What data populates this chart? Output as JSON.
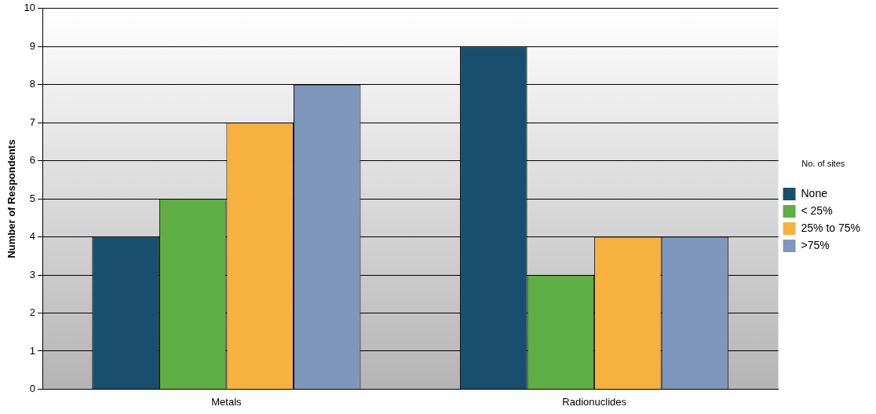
{
  "chart_data": {
    "type": "bar",
    "ylabel": "Number of Respondents",
    "legend_title": "No. of sites",
    "categories": [
      "Metals",
      "Radionuclides"
    ],
    "series": [
      {
        "name": "None",
        "color": "#1a4e6e",
        "values": [
          4,
          9
        ]
      },
      {
        "name": "< 25%",
        "color": "#5fae44",
        "values": [
          5,
          3
        ]
      },
      {
        "name": "25% to 75%",
        "color": "#f7b13f",
        "values": [
          7,
          4
        ]
      },
      {
        "name": ">75%",
        "color": "#7f97bc",
        "values": [
          8,
          4
        ]
      }
    ],
    "ylim": [
      0,
      10
    ],
    "yticks": [
      0,
      1,
      2,
      3,
      4,
      5,
      6,
      7,
      8,
      9,
      10
    ],
    "grid": "y",
    "legend": "right"
  }
}
